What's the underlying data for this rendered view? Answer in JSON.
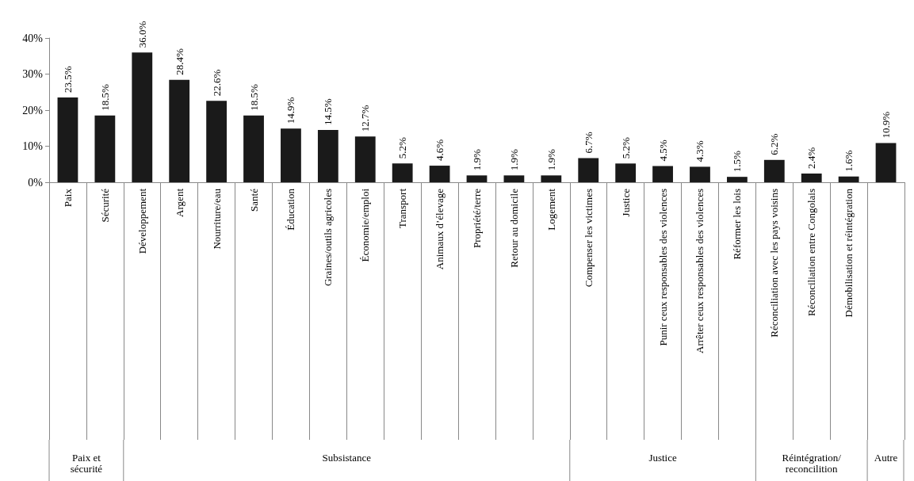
{
  "chart_data": {
    "type": "bar",
    "categories": [
      "Paix",
      "Sécurité",
      "Développement",
      "Argent",
      "Nourriture/eau",
      "Santé",
      "Éducation",
      "Graines/outils agricoles",
      "Économie/emploi",
      "Transport",
      "Animaux d’élevage",
      "Propriété/terre",
      "Retour au domicile",
      "Logement",
      "Compenser les victimes",
      "Justice",
      "Punir ceux responsables des violences",
      "Arrêter ceux responsables des violences",
      "Réformer les lois",
      "Réconciliation avec les pays voisins",
      "Réconciliation entre Congolais",
      "Démobilisation et réintégration",
      null
    ],
    "values": [
      23.5,
      18.5,
      36.0,
      28.4,
      22.6,
      18.5,
      14.9,
      14.5,
      12.7,
      5.2,
      4.6,
      1.9,
      1.9,
      1.9,
      6.7,
      5.2,
      4.5,
      4.3,
      1.5,
      6.2,
      2.4,
      1.6,
      10.9
    ],
    "value_labels": [
      "23.5%",
      "18.5%",
      "36.0%",
      "28.4%",
      "22.6%",
      "18.5%",
      "14.9%",
      "14.5%",
      "12.7%",
      "5.2%",
      "4.6%",
      "1.9%",
      "1.9%",
      "1.9%",
      "6.7%",
      "5.2%",
      "4.5%",
      "4.3%",
      "1.5%",
      "6.2%",
      "2.4%",
      "1.6%",
      "10.9%"
    ],
    "color": "#1a1a1a",
    "ylim": [
      0,
      40
    ],
    "yticks": [
      {
        "value": 0,
        "label": "0%"
      },
      {
        "value": 10,
        "label": "10%"
      },
      {
        "value": 20,
        "label": "20%"
      },
      {
        "value": 30,
        "label": "30%"
      },
      {
        "value": 40,
        "label": "40%"
      }
    ],
    "grid": false,
    "annotations": [
      "Paix et\nsécurité",
      "Subsistance",
      "Justice",
      "Réintégration/\nreconcilition",
      "Autre"
    ]
  }
}
